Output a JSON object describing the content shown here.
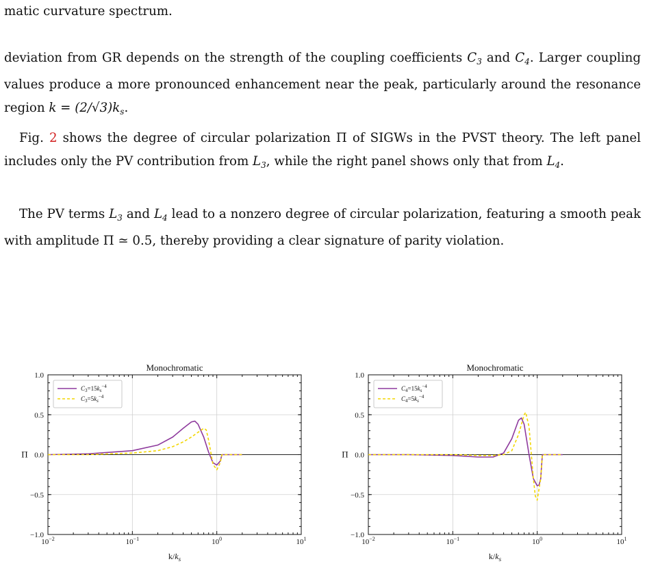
{
  "text": {
    "line1": "matic curvature spectrum.",
    "p2a": "deviation from GR depends on the strength of the coupling coefficients ",
    "p2b": " and ",
    "p2c": ". Larger coupling values produce a more pronounced enhancement near the peak, particularly around the resonance region ",
    "p2d": "k = (2/√3)k",
    "p2e": ".",
    "p3a": "Fig. ",
    "p3ref": "2",
    "p3b": " shows the degree of circular polarization Π of SIGWs in the PVST theory. The left panel includes only the PV contribution from ",
    "p3c": ", while the right panel shows only that from ",
    "p3d": ".",
    "p4a": "The PV terms ",
    "p4b": " and ",
    "p4c": " lead to a nonzero degree of circular polarization, featuring a smooth peak with amplitude Π ≃ 0.5, thereby providing a clear signature of parity violation.",
    "C3": "C",
    "C4": "C",
    "L3": "L",
    "L4": "L",
    "n3": "3",
    "n4": "4",
    "ks": "s"
  },
  "chart_data": [
    {
      "type": "line",
      "title": "Monochromatic",
      "xlabel": "k/k_s",
      "ylabel": "Π",
      "xscale": "log",
      "xlim": [
        0.01,
        10
      ],
      "ylim": [
        -1.0,
        1.0
      ],
      "xticks": [
        "10^-2",
        "10^-1",
        "10^0",
        "10^1"
      ],
      "yticks": [
        "−1.0",
        "−0.5",
        "0.0",
        "0.5",
        "1.0"
      ],
      "grid": true,
      "legend": "top-left",
      "series": [
        {
          "name": "C3=15k_s^-4",
          "color": "#8e3a9d",
          "style": "solid",
          "x": [
            0.01,
            0.03,
            0.1,
            0.2,
            0.3,
            0.4,
            0.5,
            0.55,
            0.6,
            0.7,
            0.8,
            0.9,
            1.0,
            1.1,
            1.15,
            2.0
          ],
          "y": [
            0.0,
            0.01,
            0.05,
            0.12,
            0.22,
            0.33,
            0.41,
            0.42,
            0.38,
            0.22,
            0.03,
            -0.1,
            -0.13,
            -0.08,
            0.0,
            0.0
          ]
        },
        {
          "name": "C3=5k_s^-4",
          "color": "#f2d600",
          "style": "dashed",
          "x": [
            0.01,
            0.03,
            0.1,
            0.2,
            0.3,
            0.4,
            0.5,
            0.6,
            0.7,
            0.75,
            0.8,
            0.9,
            1.0,
            1.1,
            1.15,
            2.0
          ],
          "y": [
            0.0,
            0.0,
            0.02,
            0.05,
            0.1,
            0.16,
            0.22,
            0.28,
            0.33,
            0.31,
            0.18,
            -0.12,
            -0.19,
            -0.1,
            0.0,
            0.0
          ]
        }
      ]
    },
    {
      "type": "line",
      "title": "Monochromatic",
      "xlabel": "k/k_s",
      "ylabel": "Π",
      "xscale": "log",
      "xlim": [
        0.01,
        10
      ],
      "ylim": [
        -1.0,
        1.0
      ],
      "xticks": [
        "10^-2",
        "10^-1",
        "10^0",
        "10^1"
      ],
      "yticks": [
        "−1.0",
        "−0.5",
        "0.0",
        "0.5",
        "1.0"
      ],
      "grid": true,
      "legend": "top-left",
      "series": [
        {
          "name": "C4=15k_s^-4",
          "color": "#8e3a9d",
          "style": "solid",
          "x": [
            0.01,
            0.03,
            0.1,
            0.2,
            0.3,
            0.4,
            0.5,
            0.6,
            0.65,
            0.7,
            0.8,
            0.9,
            1.0,
            1.05,
            1.1,
            1.15,
            2.0
          ],
          "y": [
            0.0,
            0.0,
            -0.01,
            -0.03,
            -0.03,
            0.02,
            0.2,
            0.43,
            0.46,
            0.38,
            0.0,
            -0.3,
            -0.39,
            -0.38,
            -0.3,
            0.0,
            0.0
          ]
        },
        {
          "name": "C4=5k_s^-4",
          "color": "#f2d600",
          "style": "dashed",
          "x": [
            0.01,
            0.03,
            0.1,
            0.2,
            0.3,
            0.4,
            0.5,
            0.6,
            0.7,
            0.73,
            0.8,
            0.9,
            0.95,
            1.0,
            1.1,
            1.15,
            2.0
          ],
          "y": [
            0.0,
            0.0,
            0.0,
            -0.01,
            -0.01,
            0.0,
            0.05,
            0.25,
            0.5,
            0.53,
            0.35,
            -0.3,
            -0.52,
            -0.57,
            -0.3,
            0.0,
            0.0
          ]
        }
      ]
    }
  ]
}
